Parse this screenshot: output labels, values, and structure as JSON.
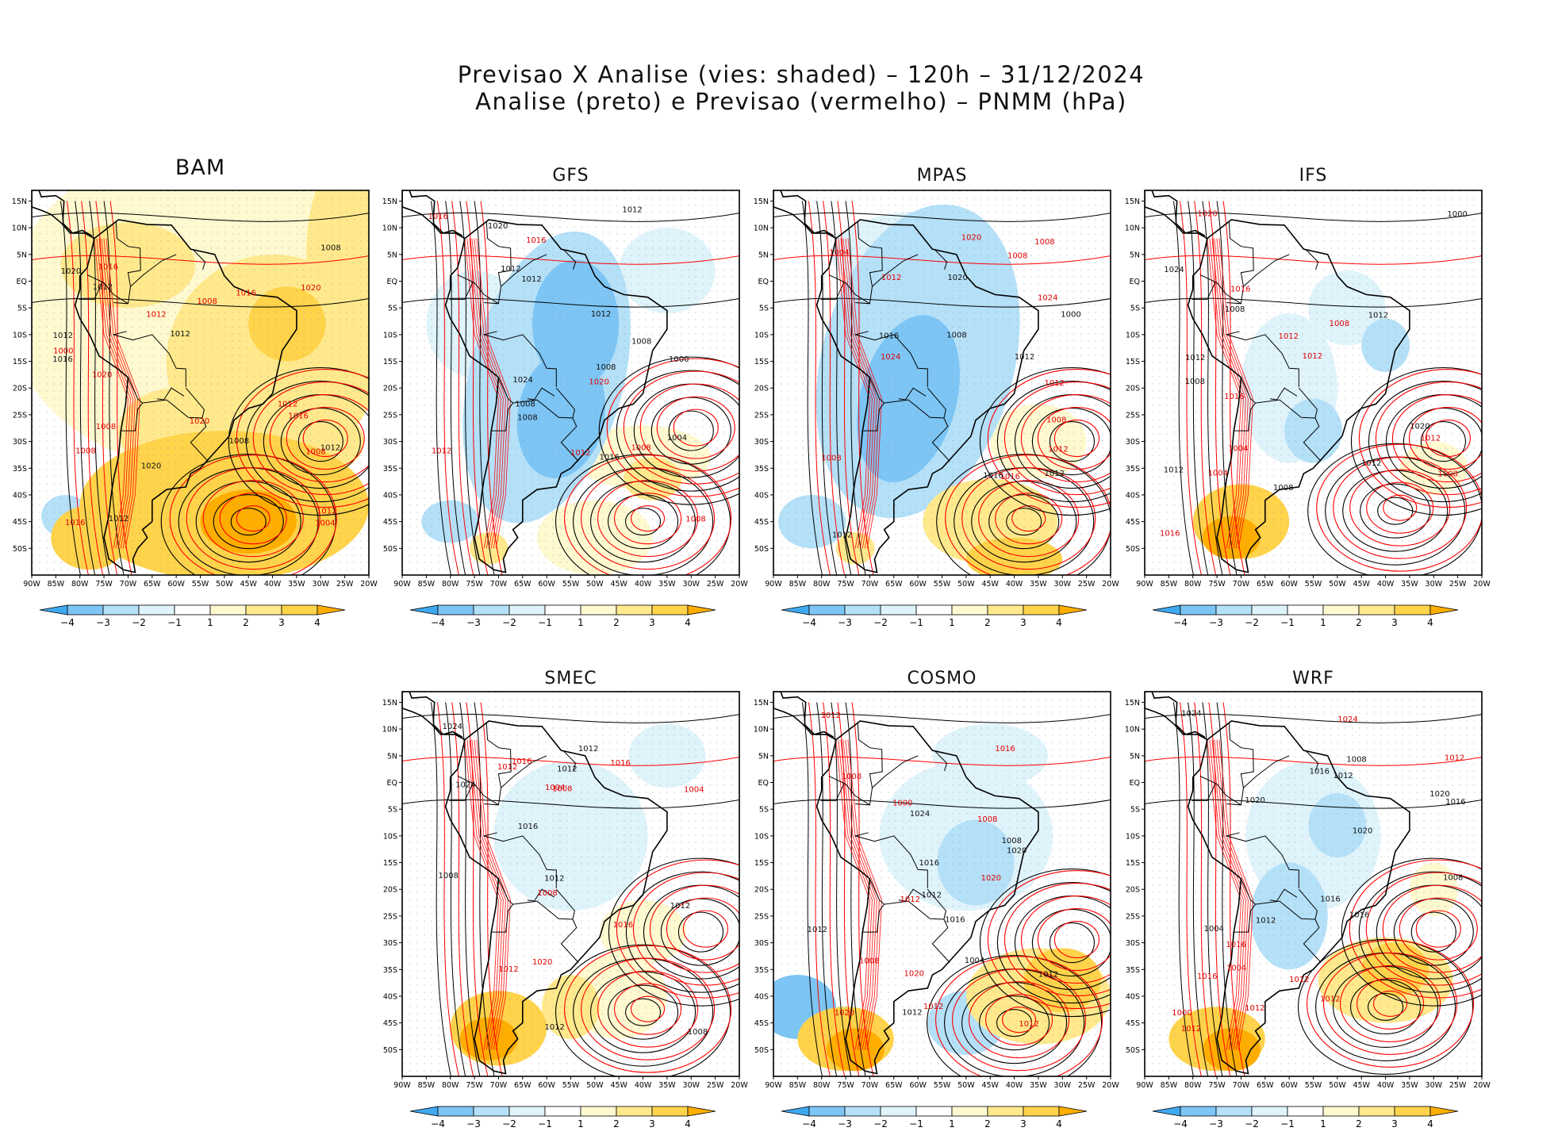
{
  "title": {
    "line1": "Previsao X Analise (vies: shaded) – 120h – 31/12/2024",
    "line2": "Analise (preto) e Previsao (vermelho) – PNMM (hPa)"
  },
  "colors": {
    "neg4": "#3fa9f0",
    "neg3": "#7cc5f5",
    "neg2": "#b4e0f8",
    "neg1": "#dff3fb",
    "zero": "#ffffff",
    "pos1": "#fff9d0",
    "pos2": "#ffe98c",
    "pos3": "#ffd34a",
    "pos4": "#ffae00",
    "analysis_contour": "#000000",
    "forecast_contour": "#ff0000"
  },
  "legend": {
    "levels": [
      "-4",
      "-3",
      "-2",
      "-1",
      "1",
      "2",
      "3",
      "4"
    ]
  },
  "axes": {
    "lon_ticks": [
      "90W",
      "85W",
      "80W",
      "75W",
      "70W",
      "65W",
      "60W",
      "55W",
      "50W",
      "45W",
      "40W",
      "35W",
      "30W",
      "25W",
      "20W"
    ],
    "lat_ticks": [
      "15N",
      "10N",
      "5N",
      "EQ",
      "5S",
      "10S",
      "15S",
      "20S",
      "25S",
      "30S",
      "35S",
      "40S",
      "45S",
      "50S"
    ]
  },
  "chart_data": [
    {
      "type": "heatmap",
      "model": "BAM",
      "variable": "PNMM bias (hPa)",
      "lon_range": [
        -90,
        -20
      ],
      "lat_range": [
        -55,
        17
      ],
      "dominant_bias": "positive",
      "isobar_labels": [
        "1012",
        "1016",
        "1012",
        "1012",
        "1008",
        "1008",
        "1012",
        "1016",
        "1012",
        "1008",
        "1008",
        "1012",
        "1016",
        "1012",
        "1016",
        "1008",
        "1020",
        "1016",
        "1012",
        "1008",
        "1004",
        "1020",
        "1020",
        "1000",
        "1020",
        "1020"
      ]
    },
    {
      "type": "heatmap",
      "model": "GFS",
      "variable": "PNMM bias (hPa)",
      "lon_range": [
        -90,
        -20
      ],
      "lat_range": [
        -55,
        17
      ],
      "dominant_bias": "negative",
      "isobar_labels": [
        "1012",
        "1012",
        "1012",
        "1012",
        "1008",
        "1008",
        "1008",
        "1012",
        "1008",
        "1008",
        "1012",
        "1016",
        "1008",
        "1016",
        "1004",
        "1020",
        "1020",
        "1024",
        "1000",
        "1016"
      ]
    },
    {
      "type": "heatmap",
      "model": "MPAS",
      "variable": "PNMM bias (hPa)",
      "lon_range": [
        -90,
        -20
      ],
      "lat_range": [
        -55,
        17
      ],
      "dominant_bias": "negative",
      "isobar_labels": [
        "1012",
        "1008",
        "1012",
        "1008",
        "1008",
        "1012",
        "1012",
        "1012",
        "1008",
        "1008",
        "1012",
        "1016",
        "1016",
        "1004",
        "1020",
        "1024",
        "1024",
        "1020",
        "1000",
        "1016"
      ]
    },
    {
      "type": "heatmap",
      "model": "IFS",
      "variable": "PNMM bias (hPa)",
      "lon_range": [
        -90,
        -20
      ],
      "lat_range": [
        -55,
        17
      ],
      "dominant_bias": "mixed",
      "isobar_labels": [
        "1012",
        "1012",
        "1012",
        "1012",
        "1008",
        "1008",
        "1012",
        "1012",
        "1004",
        "1008",
        "1012",
        "1008",
        "1016",
        "1016",
        "1004",
        "1008",
        "1020",
        "1020",
        "1024",
        "1000",
        "1016"
      ]
    },
    {
      "type": "heatmap",
      "model": "SMEC",
      "variable": "PNMM bias (hPa)",
      "lon_range": [
        -90,
        -20
      ],
      "lat_range": [
        -55,
        17
      ],
      "dominant_bias": "mixed",
      "isobar_labels": [
        "1012",
        "1012",
        "1012",
        "1012",
        "1008",
        "1016",
        "1012",
        "1008",
        "1012",
        "1008",
        "1012",
        "1004",
        "1016",
        "1016",
        "1004",
        "1008",
        "1020",
        "1024",
        "1024",
        "1016"
      ]
    },
    {
      "type": "heatmap",
      "model": "COSMO",
      "variable": "PNMM bias (hPa)",
      "lon_range": [
        -90,
        -20
      ],
      "lat_range": [
        -55,
        17
      ],
      "dominant_bias": "mixed",
      "isobar_labels": [
        "1012",
        "1012",
        "1008",
        "1012",
        "1008",
        "1012",
        "1012",
        "1012",
        "1016",
        "1008",
        "1012",
        "1012",
        "1008",
        "1016",
        "1004",
        "1016",
        "1020",
        "1020",
        "1020",
        "1000",
        "1024",
        "1020"
      ]
    },
    {
      "type": "heatmap",
      "model": "WRF",
      "variable": "PNMM bias (hPa)",
      "lon_range": [
        -90,
        -20
      ],
      "lat_range": [
        -55,
        17
      ],
      "dominant_bias": "mixed",
      "isobar_labels": [
        "1016",
        "1012",
        "1012",
        "1012",
        "1012",
        "1012",
        "1008",
        "1012",
        "1016",
        "1012",
        "1016",
        "1004",
        "1008",
        "1016",
        "1020",
        "1024",
        "1020",
        "1020",
        "1004",
        "1000",
        "1016",
        "1024",
        "1016"
      ]
    }
  ]
}
